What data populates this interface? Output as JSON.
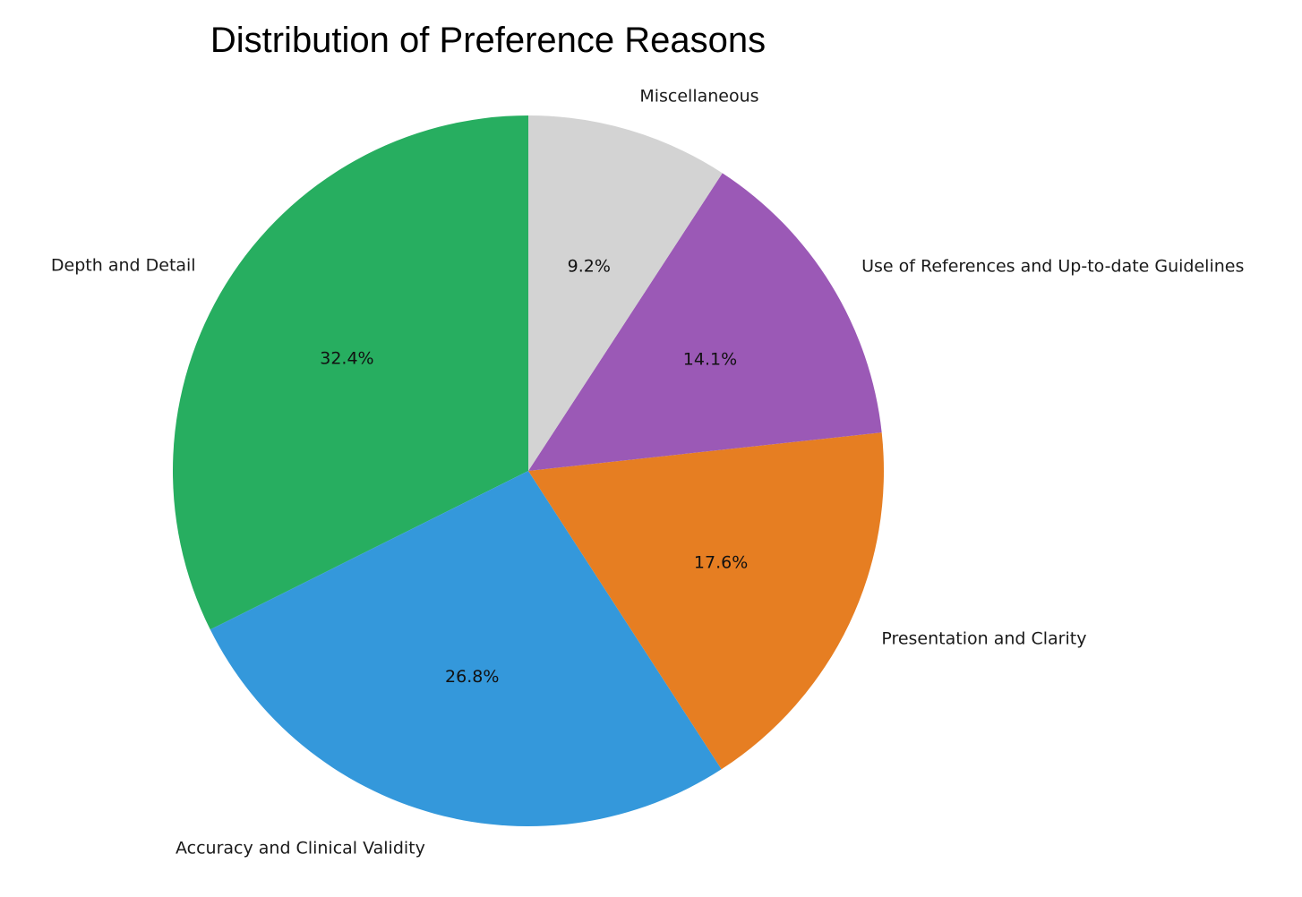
{
  "chart_data": {
    "type": "pie",
    "title": "Distribution of Preference Reasons",
    "start_angle_deg": 90,
    "direction": "counterclockwise",
    "slices": [
      {
        "label": "Depth and Detail",
        "value": 32.4,
        "pct_label": "32.4%",
        "color": "#27ae60"
      },
      {
        "label": "Accuracy and Clinical Validity",
        "value": 26.8,
        "pct_label": "26.8%",
        "color": "#3498db"
      },
      {
        "label": "Presentation and Clarity",
        "value": 17.6,
        "pct_label": "17.6%",
        "color": "#e67e22"
      },
      {
        "label": "Use of References and Up-to-date Guidelines",
        "value": 14.1,
        "pct_label": "14.1%",
        "color": "#9b59b6"
      },
      {
        "label": "Miscellaneous",
        "value": 9.2,
        "pct_label": "9.2%",
        "color": "#d3d3d3"
      }
    ]
  }
}
